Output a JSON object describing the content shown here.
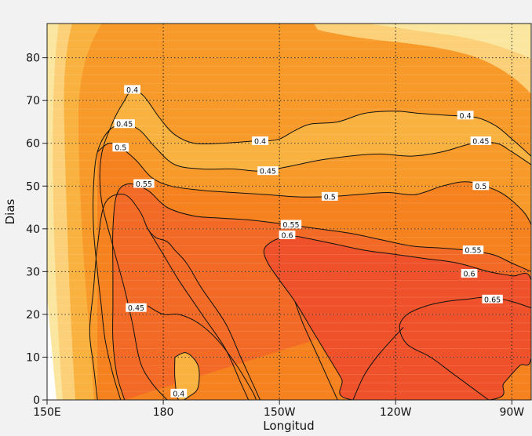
{
  "chart_data": {
    "type": "contour",
    "title": "",
    "xlabel": "Longitud",
    "ylabel": "Dias",
    "xlim": [
      150,
      275
    ],
    "ylim": [
      0,
      88
    ],
    "x_ticks": [
      {
        "value": 150,
        "label": "150E"
      },
      {
        "value": 180,
        "label": "180"
      },
      {
        "value": 210,
        "label": "150W"
      },
      {
        "value": 240,
        "label": "120W"
      },
      {
        "value": 270,
        "label": "90W"
      }
    ],
    "y_ticks": [
      0,
      10,
      20,
      30,
      40,
      50,
      60,
      70,
      80
    ],
    "vertical_gridlines": [
      180,
      210,
      240,
      270
    ],
    "fill_levels": [
      {
        "min": 0.3,
        "color": "#fbe6a0"
      },
      {
        "min": 0.35,
        "color": "#fbd078"
      },
      {
        "min": 0.4,
        "color": "#f9b23f"
      },
      {
        "min": 0.45,
        "color": "#f79a2a"
      },
      {
        "min": 0.5,
        "color": "#f5811f"
      },
      {
        "min": 0.55,
        "color": "#f26a25"
      },
      {
        "min": 0.6,
        "color": "#ef522a"
      }
    ],
    "contours": [
      {
        "level": 0.4,
        "points": [
          [
            181,
            0
          ],
          [
            177,
            4
          ],
          [
            174,
            9
          ],
          [
            172,
            18
          ],
          [
            170,
            26
          ],
          [
            167,
            36
          ],
          [
            164,
            47
          ],
          [
            164,
            57
          ],
          [
            167,
            65
          ],
          [
            170,
            70
          ],
          [
            172,
            72.5
          ],
          [
            175,
            71
          ],
          [
            179,
            66
          ],
          [
            183,
            62
          ],
          [
            188,
            60
          ],
          [
            195,
            60
          ],
          [
            203,
            60.5
          ],
          [
            206,
            60.5
          ],
          [
            210,
            61
          ],
          [
            214,
            63
          ],
          [
            218,
            64.5
          ],
          [
            225,
            65
          ],
          [
            232,
            67
          ],
          [
            240,
            67.5
          ],
          [
            246,
            67
          ],
          [
            254,
            66.5
          ],
          [
            261,
            66
          ],
          [
            266,
            64
          ],
          [
            270,
            61
          ],
          [
            275,
            57
          ]
        ],
        "labels": [
          {
            "x": 172,
            "y": 72.5,
            "text": "0.4"
          },
          {
            "x": 205,
            "y": 60.5,
            "text": "0.4"
          },
          {
            "x": 258,
            "y": 66.5,
            "text": "0.4"
          },
          {
            "x": 184,
            "y": 1.5,
            "text": "0.4"
          }
        ]
      },
      {
        "level": 0.4,
        "points": [
          [
            183,
            10
          ],
          [
            186,
            11
          ],
          [
            189,
            8
          ],
          [
            189,
            3
          ],
          [
            187,
            1
          ],
          [
            184,
            0
          ],
          [
            183,
            5
          ],
          [
            183,
            10
          ]
        ],
        "labels": []
      },
      {
        "level": 0.45,
        "points": [
          [
            169,
            0
          ],
          [
            167,
            6
          ],
          [
            165,
            14
          ],
          [
            164,
            22
          ],
          [
            163,
            30
          ],
          [
            162,
            40
          ],
          [
            162,
            50
          ],
          [
            163,
            58
          ],
          [
            166,
            63
          ],
          [
            170,
            64.5
          ],
          [
            174,
            63
          ],
          [
            178,
            59
          ],
          [
            183,
            55
          ],
          [
            190,
            54
          ],
          [
            198,
            54
          ],
          [
            205,
            53.5
          ],
          [
            212,
            54.5
          ],
          [
            220,
            56
          ],
          [
            228,
            57
          ],
          [
            236,
            57.5
          ],
          [
            244,
            57
          ],
          [
            252,
            58
          ],
          [
            260,
            60
          ],
          [
            266,
            60
          ],
          [
            270,
            58
          ],
          [
            275,
            55
          ]
        ],
        "labels": [
          {
            "x": 170,
            "y": 64.5,
            "text": "0.45"
          },
          {
            "x": 207,
            "y": 53.5,
            "text": "0.45"
          },
          {
            "x": 262,
            "y": 60.5,
            "text": "0.45"
          },
          {
            "x": 173,
            "y": 21.5,
            "text": "0.45"
          }
        ]
      },
      {
        "level": 0.5,
        "points": [
          [
            163,
            58
          ],
          [
            166,
            60
          ],
          [
            169,
            59
          ],
          [
            173,
            56
          ],
          [
            177,
            52
          ],
          [
            182,
            50
          ],
          [
            190,
            49
          ],
          [
            198,
            48.5
          ],
          [
            207,
            48
          ],
          [
            214,
            47.5
          ],
          [
            222,
            47.5
          ],
          [
            230,
            48
          ],
          [
            238,
            48.5
          ],
          [
            245,
            48
          ],
          [
            252,
            50
          ],
          [
            258,
            51
          ],
          [
            263,
            50
          ],
          [
            268,
            48
          ],
          [
            273,
            44
          ],
          [
            275,
            41
          ]
        ],
        "labels": [
          {
            "x": 169,
            "y": 59,
            "text": "0.5"
          },
          {
            "x": 223,
            "y": 47.5,
            "text": "0.5"
          },
          {
            "x": 262,
            "y": 50,
            "text": "0.5"
          }
        ]
      },
      {
        "level": 0.55,
        "points": [
          [
            170,
            0
          ],
          [
            168,
            6
          ],
          [
            167,
            14
          ],
          [
            167,
            22
          ],
          [
            167,
            30
          ],
          [
            167,
            40
          ],
          [
            168,
            48
          ],
          [
            171,
            50.5
          ],
          [
            176,
            49
          ],
          [
            181,
            45
          ],
          [
            188,
            43
          ],
          [
            195,
            42.5
          ],
          [
            203,
            42
          ],
          [
            212,
            41
          ],
          [
            220,
            40
          ],
          [
            228,
            39
          ],
          [
            236,
            37.5
          ],
          [
            244,
            36
          ],
          [
            252,
            35.5
          ],
          [
            258,
            35
          ],
          [
            265,
            34
          ],
          [
            270,
            32
          ],
          [
            275,
            30
          ]
        ],
        "labels": [
          {
            "x": 175,
            "y": 50.5,
            "text": "0.55"
          },
          {
            "x": 213,
            "y": 41,
            "text": "0.55"
          },
          {
            "x": 260,
            "y": 35,
            "text": "0.55"
          }
        ]
      },
      {
        "level": 0.6,
        "points": [
          [
            212,
            38.5
          ],
          [
            208,
            37
          ],
          [
            206,
            35
          ],
          [
            207,
            32
          ],
          [
            210,
            28
          ],
          [
            214,
            23
          ],
          [
            218,
            17
          ],
          [
            222,
            11
          ],
          [
            226,
            5
          ],
          [
            229,
            0
          ],
          [
            264,
            0
          ],
          [
            268,
            4
          ],
          [
            272,
            8
          ],
          [
            275,
            10
          ],
          [
            275,
            28
          ],
          [
            270,
            29
          ],
          [
            264,
            30
          ],
          [
            256,
            32
          ],
          [
            248,
            33
          ],
          [
            240,
            34
          ],
          [
            232,
            35
          ],
          [
            224,
            36.5
          ],
          [
            216,
            38
          ],
          [
            212,
            38.5
          ]
        ],
        "labels": [
          {
            "x": 212,
            "y": 38.5,
            "text": "0.6"
          },
          {
            "x": 259,
            "y": 29.5,
            "text": "0.6"
          }
        ]
      },
      {
        "level": 0.65,
        "points": [
          [
            264,
            0
          ],
          [
            255,
            6
          ],
          [
            249,
            10
          ],
          [
            243,
            13
          ],
          [
            241,
            17
          ],
          [
            243,
            20
          ],
          [
            248,
            22
          ],
          [
            253,
            23
          ],
          [
            258,
            23.5
          ],
          [
            264,
            24
          ],
          [
            270,
            23
          ],
          [
            275,
            21.5
          ]
        ],
        "labels": [
          {
            "x": 265,
            "y": 23.5,
            "text": "0.65"
          }
        ]
      },
      {
        "level": 0.6,
        "points": [
          [
            163,
            0
          ],
          [
            162,
            8
          ],
          [
            161,
            16
          ],
          [
            162,
            26
          ],
          [
            163,
            36
          ],
          [
            165,
            46
          ],
          [
            170,
            48
          ],
          [
            174,
            44
          ],
          [
            176,
            40
          ],
          [
            178,
            38
          ],
          [
            181,
            37
          ],
          [
            183,
            35
          ],
          [
            186,
            32
          ],
          [
            190,
            26
          ],
          [
            196,
            18
          ],
          [
            200,
            10
          ],
          [
            203,
            4
          ],
          [
            205,
            0
          ]
        ],
        "labels": []
      },
      {
        "level": 0.55,
        "points": [
          [
            176,
            40
          ],
          [
            180,
            34
          ],
          [
            184,
            28
          ],
          [
            190,
            20
          ],
          [
            196,
            12
          ],
          [
            200,
            4
          ],
          [
            202,
            0
          ]
        ],
        "labels": []
      },
      {
        "level": 0.5,
        "points": [
          [
            176,
            22
          ],
          [
            180,
            20
          ],
          [
            184,
            20
          ],
          [
            189,
            18
          ],
          [
            194,
            14
          ],
          [
            199,
            8
          ],
          [
            203,
            2
          ],
          [
            204,
            0
          ]
        ],
        "labels": []
      },
      {
        "level": 0.45,
        "points": [
          [
            214,
            23
          ],
          [
            216,
            18
          ],
          [
            219,
            12
          ],
          [
            222,
            6
          ],
          [
            225,
            0
          ]
        ],
        "labels": []
      },
      {
        "level": 0.4,
        "points": [
          [
            242,
            17
          ],
          [
            236,
            11
          ],
          [
            232,
            6
          ],
          [
            229,
            0
          ]
        ],
        "labels": []
      }
    ]
  }
}
